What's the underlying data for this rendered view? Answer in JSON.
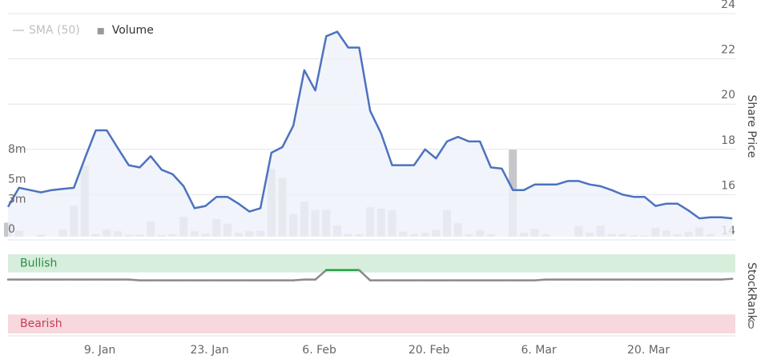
{
  "chart_data": [
    {
      "type": "line",
      "categories": [
        null,
        null,
        null,
        null,
        null,
        null,
        null,
        null,
        "9. Jan",
        null,
        null,
        null,
        null,
        null,
        null,
        null,
        null,
        null,
        "23. Jan",
        null,
        null,
        null,
        null,
        null,
        null,
        null,
        null,
        null,
        "6. Feb",
        null,
        null,
        null,
        null,
        null,
        null,
        null,
        null,
        null,
        "20. Feb",
        null,
        null,
        null,
        null,
        null,
        null,
        null,
        null,
        null,
        "6. Mar",
        null,
        null,
        null,
        null,
        null,
        null,
        null,
        null,
        null,
        "20. Mar",
        null,
        null,
        null,
        null,
        null,
        null,
        null,
        null
      ],
      "y_label": "Share Price",
      "ylim": [
        14,
        24
      ],
      "yticks": [
        14,
        16,
        18,
        20,
        22,
        24
      ],
      "grid": true,
      "y2lim": [
        0,
        8
      ],
      "y2ticks": [
        {
          "value": 0,
          "label": "0"
        },
        {
          "value": 3,
          "label": "3m"
        },
        {
          "value": 5,
          "label": "5m"
        },
        {
          "value": 8,
          "label": "8m"
        }
      ],
      "legend": "top-left",
      "series": [
        {
          "name": "SMA (50)",
          "color": "#c8c8c8",
          "hidden": true
        },
        {
          "name": "Volume",
          "type": "bar",
          "axis": "y2",
          "color": "#c6c6cb",
          "values": [
            1.4,
            0.6,
            0,
            0.2,
            0,
            0.7,
            3.1,
            7.1,
            0.25,
            0.7,
            0.55,
            0.2,
            0.2,
            1.5,
            0.15,
            0.25,
            2.0,
            0.55,
            0.3,
            1.75,
            1.3,
            0.4,
            0.55,
            0.6,
            6.8,
            5.85,
            2.25,
            3.5,
            2.65,
            2.7,
            1.1,
            0.25,
            0.25,
            2.95,
            2.8,
            2.65,
            0.5,
            0.25,
            0.4,
            0.65,
            2.65,
            1.35,
            0.25,
            0.65,
            0.25,
            0,
            8.7,
            0.4,
            0.8,
            0.25,
            0,
            0,
            1.05,
            0.4,
            1.1,
            0.25,
            0.25,
            0.15,
            0.1,
            0.9,
            0.6,
            0.25,
            0.5,
            0.9,
            0.25,
            0,
            0
          ]
        },
        {
          "type": "line",
          "color": "#4d72bf",
          "fill": "#eef1f9",
          "values": [
            15.46,
            16.3,
            16.2,
            16.1,
            16.2,
            16.25,
            16.3,
            17.6,
            18.84,
            18.84,
            18.06,
            17.3,
            17.2,
            17.7,
            17.1,
            16.9,
            16.37,
            15.4,
            15.5,
            15.9,
            15.9,
            15.6,
            15.25,
            15.4,
            17.85,
            18.1,
            19.05,
            21.5,
            20.6,
            23.0,
            23.2,
            22.5,
            22.5,
            19.7,
            18.7,
            17.3,
            17.3,
            17.3,
            18.0,
            17.6,
            18.35,
            18.55,
            18.35,
            18.35,
            17.2,
            17.15,
            16.2,
            16.2,
            16.45,
            16.45,
            16.45,
            16.6,
            16.6,
            16.45,
            16.37,
            16.2,
            16.0,
            15.9,
            15.9,
            15.5,
            15.6,
            15.6,
            15.3,
            14.95,
            15.0,
            15.0,
            14.95
          ]
        }
      ]
    },
    {
      "type": "line",
      "y_label": "StockRank",
      "ylim": [
        0,
        100
      ],
      "yticks": [
        0
      ],
      "bands": [
        {
          "label": "Bullish",
          "range": [
            77,
            100
          ],
          "color": "#d6eedb",
          "text_color": "#2e8b45",
          "line_color": "#2e9e44"
        },
        {
          "label": "Bearish",
          "range": [
            0,
            24
          ],
          "color": "#f7d8dd",
          "text_color": "#c73b5c"
        }
      ],
      "color": "#8a8a8a",
      "values": [
        68,
        68,
        68,
        68,
        68,
        68,
        68,
        68,
        68,
        68,
        68,
        68,
        67,
        67,
        67,
        67,
        67,
        67,
        67,
        67,
        67,
        67,
        67,
        67,
        67,
        67,
        67,
        68,
        68,
        80,
        80,
        80,
        80,
        67,
        67,
        67,
        67,
        67,
        67,
        67,
        67,
        67,
        67,
        67,
        67,
        67,
        67,
        67,
        67,
        68,
        68,
        68,
        68,
        68,
        68,
        68,
        68,
        68,
        68,
        68,
        68,
        68,
        68,
        68,
        68,
        68,
        69
      ]
    }
  ]
}
